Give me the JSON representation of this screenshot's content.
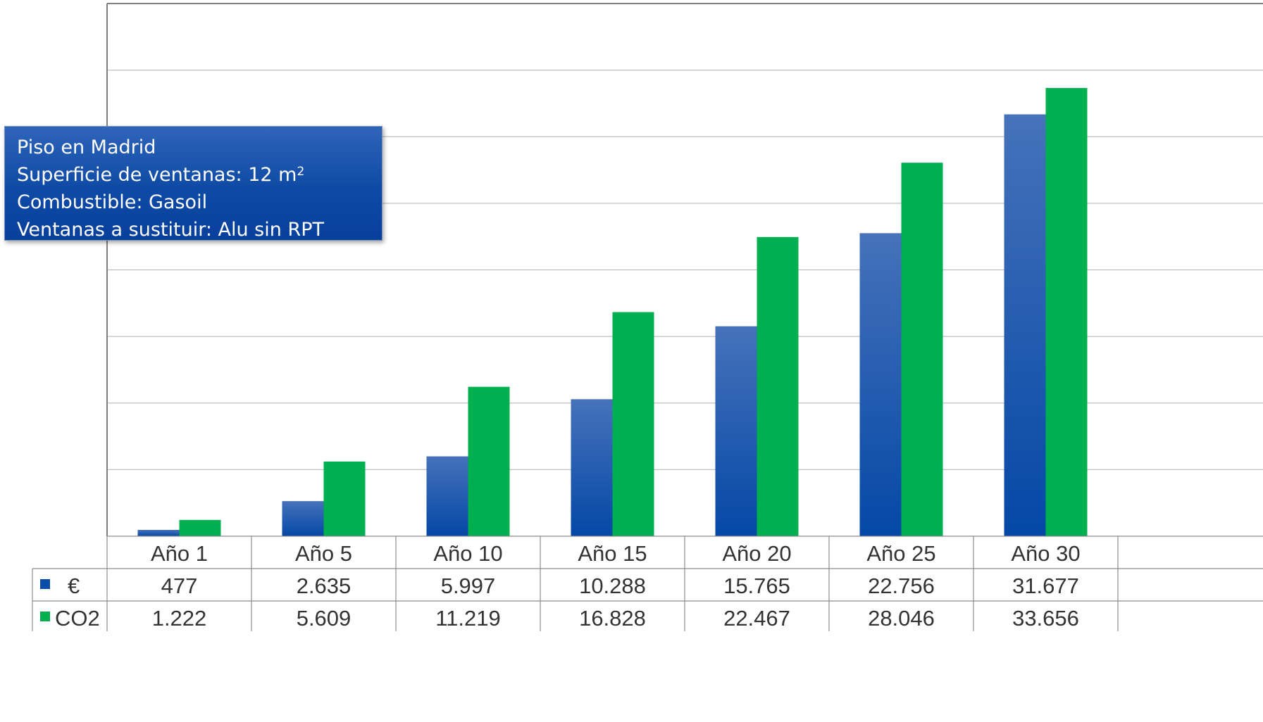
{
  "info_box": {
    "line1": "Piso en Madrid",
    "line2": "Superficie de ventanas: 12 m",
    "line2_sup": "2",
    "line3": "Combustible: Gasoil",
    "line4": "Ventanas a sustituir: Alu sin RPT"
  },
  "colors": {
    "euro_series": "#0a4ea8",
    "co2_series": "#00b050",
    "grid": "#bfbfbf",
    "table_text": "#333333"
  },
  "chart_data": {
    "type": "bar",
    "categories": [
      "Año 1",
      "Año 5",
      "Año 10",
      "Año 15",
      "Año 20",
      "Año 25",
      "Año 30"
    ],
    "series": [
      {
        "name": "€",
        "values": [
          477,
          2635,
          5997,
          10288,
          15765,
          22756,
          31677
        ],
        "labels": [
          "477",
          "2.635",
          "5.997",
          "10.288",
          "15.765",
          "22.756",
          "31.677"
        ]
      },
      {
        "name": "CO2",
        "values": [
          1222,
          5609,
          11219,
          16828,
          22467,
          28046,
          33656
        ],
        "labels": [
          "1.222",
          "5.609",
          "11.219",
          "16.828",
          "22.467",
          "28.046",
          "33.656"
        ]
      }
    ],
    "ylim": [
      0,
      40000
    ],
    "grid": true,
    "legend": "data-table-left"
  }
}
